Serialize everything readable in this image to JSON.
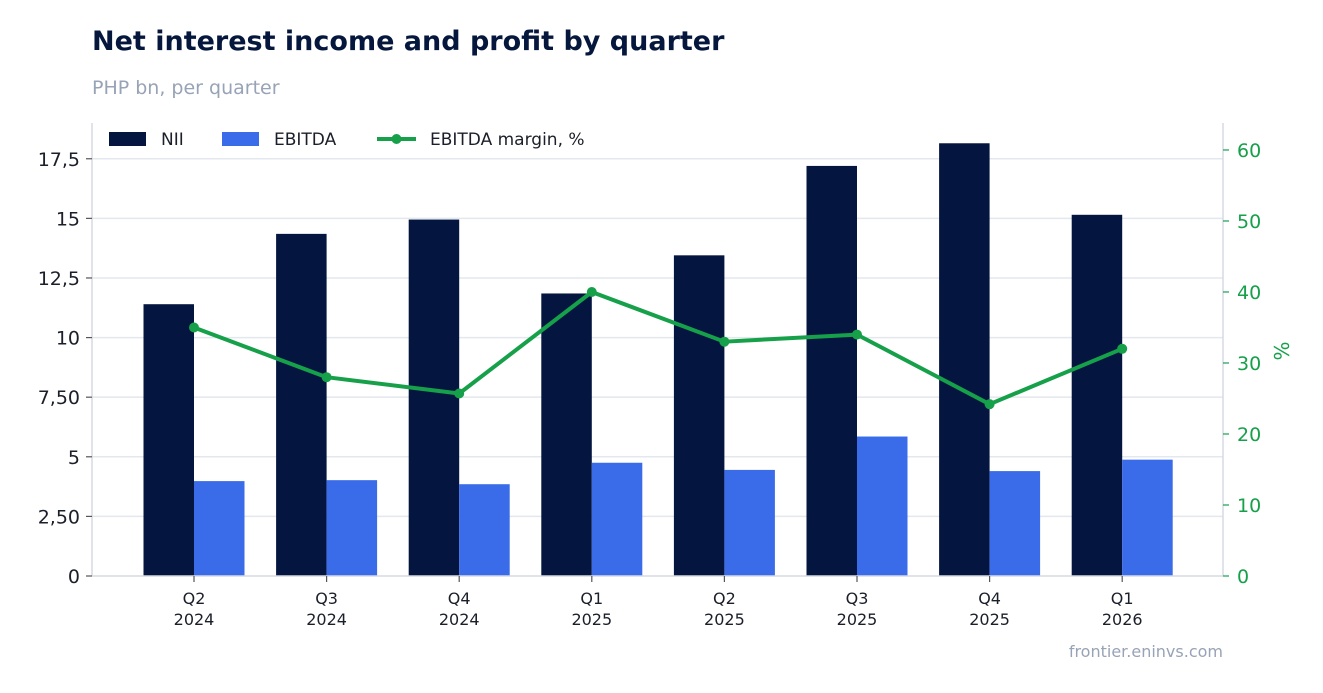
{
  "title": "Net interest income and profit by quarter",
  "subtitle": "PHP bn, per quarter",
  "source": "frontier.eninvs.com",
  "colors": {
    "nii": "#04163f",
    "ebitda": "#3a6be8",
    "margin": "#16a04a",
    "grid": "#e3e7ee",
    "axis": "#d5dae2"
  },
  "chart_data": {
    "type": "bar",
    "categories": [
      [
        "Q2",
        "2024"
      ],
      [
        "Q3",
        "2024"
      ],
      [
        "Q4",
        "2024"
      ],
      [
        "Q1",
        "2025"
      ],
      [
        "Q2",
        "2025"
      ],
      [
        "Q3",
        "2025"
      ],
      [
        "Q4",
        "2025"
      ],
      [
        "Q1",
        "2026"
      ]
    ],
    "series": [
      {
        "name": "NII",
        "type": "bar",
        "axis": "left",
        "values": [
          11.4,
          14.35,
          14.95,
          11.85,
          13.45,
          17.2,
          18.15,
          15.15
        ]
      },
      {
        "name": "EBITDA",
        "type": "bar",
        "axis": "left",
        "values": [
          3.98,
          4.02,
          3.85,
          4.75,
          4.45,
          5.85,
          4.4,
          4.88
        ]
      },
      {
        "name": "EBITDA margin, %",
        "type": "line",
        "axis": "right",
        "values": [
          35,
          28,
          25.7,
          40,
          33,
          34,
          24.2,
          32
        ]
      }
    ],
    "y_left": {
      "ylim": [
        0,
        19
      ],
      "ticks": [
        0,
        2.5,
        5,
        7.5,
        10,
        12.5,
        15,
        17.5
      ],
      "tick_labels": [
        "0",
        "2,50",
        "5",
        "7,50",
        "10",
        "12,5",
        "15",
        "17,5"
      ]
    },
    "y_right": {
      "ylabel": "%",
      "ylim": [
        0,
        63.8
      ],
      "ticks": [
        0,
        10,
        20,
        30,
        40,
        50,
        60
      ],
      "tick_labels": [
        "0",
        "10",
        "20",
        "30",
        "40",
        "50",
        "60"
      ]
    },
    "grid": true,
    "legend": "top-left"
  }
}
